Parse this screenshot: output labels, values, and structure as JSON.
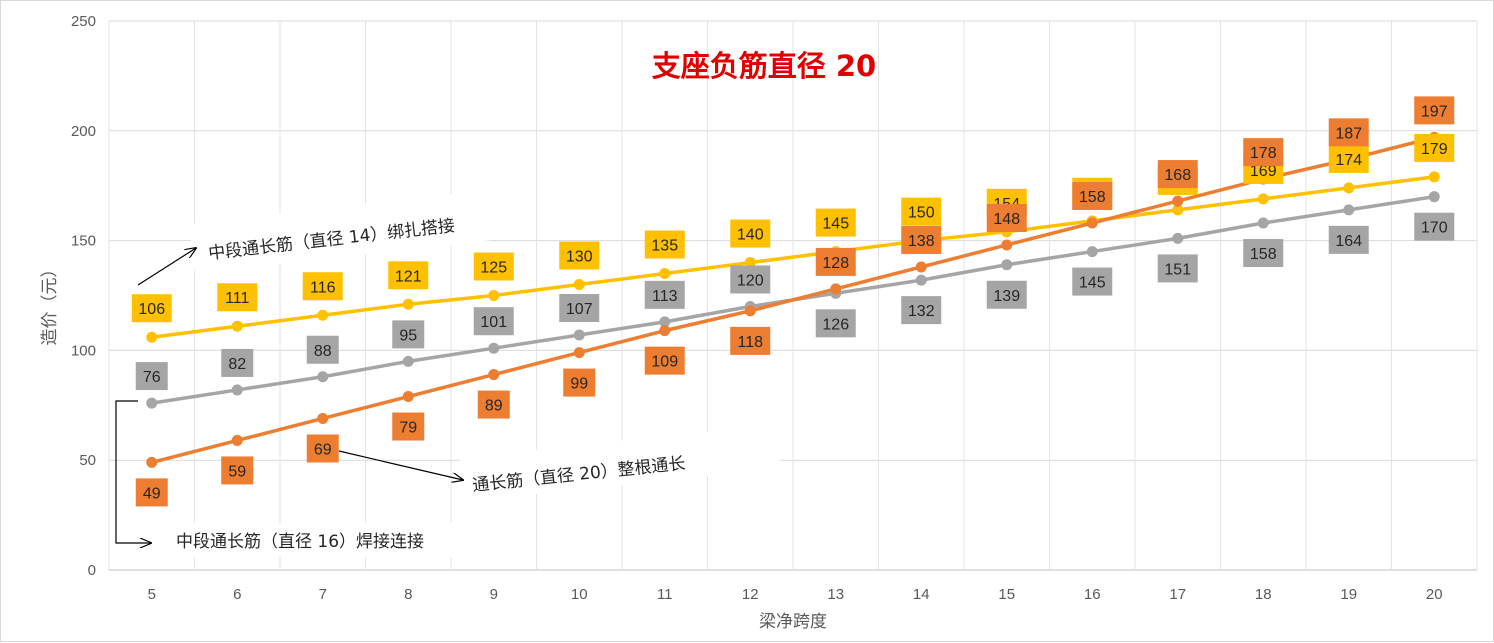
{
  "chart_data": {
    "type": "line",
    "title": "支座负筋直径 20",
    "xlabel": "梁净跨度",
    "ylabel": "造价（元）",
    "x": [
      5,
      6,
      7,
      8,
      9,
      10,
      11,
      12,
      13,
      14,
      15,
      16,
      17,
      18,
      19,
      20
    ],
    "ylim": [
      0,
      250
    ],
    "yticks": [
      0,
      50,
      100,
      150,
      200,
      250
    ],
    "grid": true,
    "legend": "none",
    "series": [
      {
        "name": "中段通长筋（直径 14）绑扎搭接",
        "color": "#ffc000",
        "label_color": "#ffc000",
        "label_text_color": "#262626",
        "values": [
          106,
          111,
          116,
          121,
          125,
          130,
          135,
          140,
          145,
          150,
          154,
          159,
          164,
          169,
          174,
          179
        ]
      },
      {
        "name": "中段通长筋（直径 16）焊接连接",
        "color": "#a5a5a5",
        "label_color": "#a5a5a5",
        "label_text_color": "#262626",
        "values": [
          76,
          82,
          88,
          95,
          101,
          107,
          113,
          120,
          126,
          132,
          139,
          145,
          151,
          158,
          164,
          170
        ]
      },
      {
        "name": "通长筋（直径 20）整根通长",
        "color": "#ed7d31",
        "label_color": "#ed7d31",
        "label_text_color": "#262626",
        "values": [
          49,
          59,
          69,
          79,
          89,
          99,
          109,
          118,
          128,
          138,
          148,
          158,
          168,
          178,
          187,
          197
        ]
      }
    ],
    "annotations": [
      {
        "text": "中段通长筋（直径 14）绑扎搭接",
        "series": 0
      },
      {
        "text": "中段通长筋（直径 16）焊接连接",
        "series": 1
      },
      {
        "text": "通长筋（直径 20）整根通长",
        "series": 2
      }
    ]
  }
}
